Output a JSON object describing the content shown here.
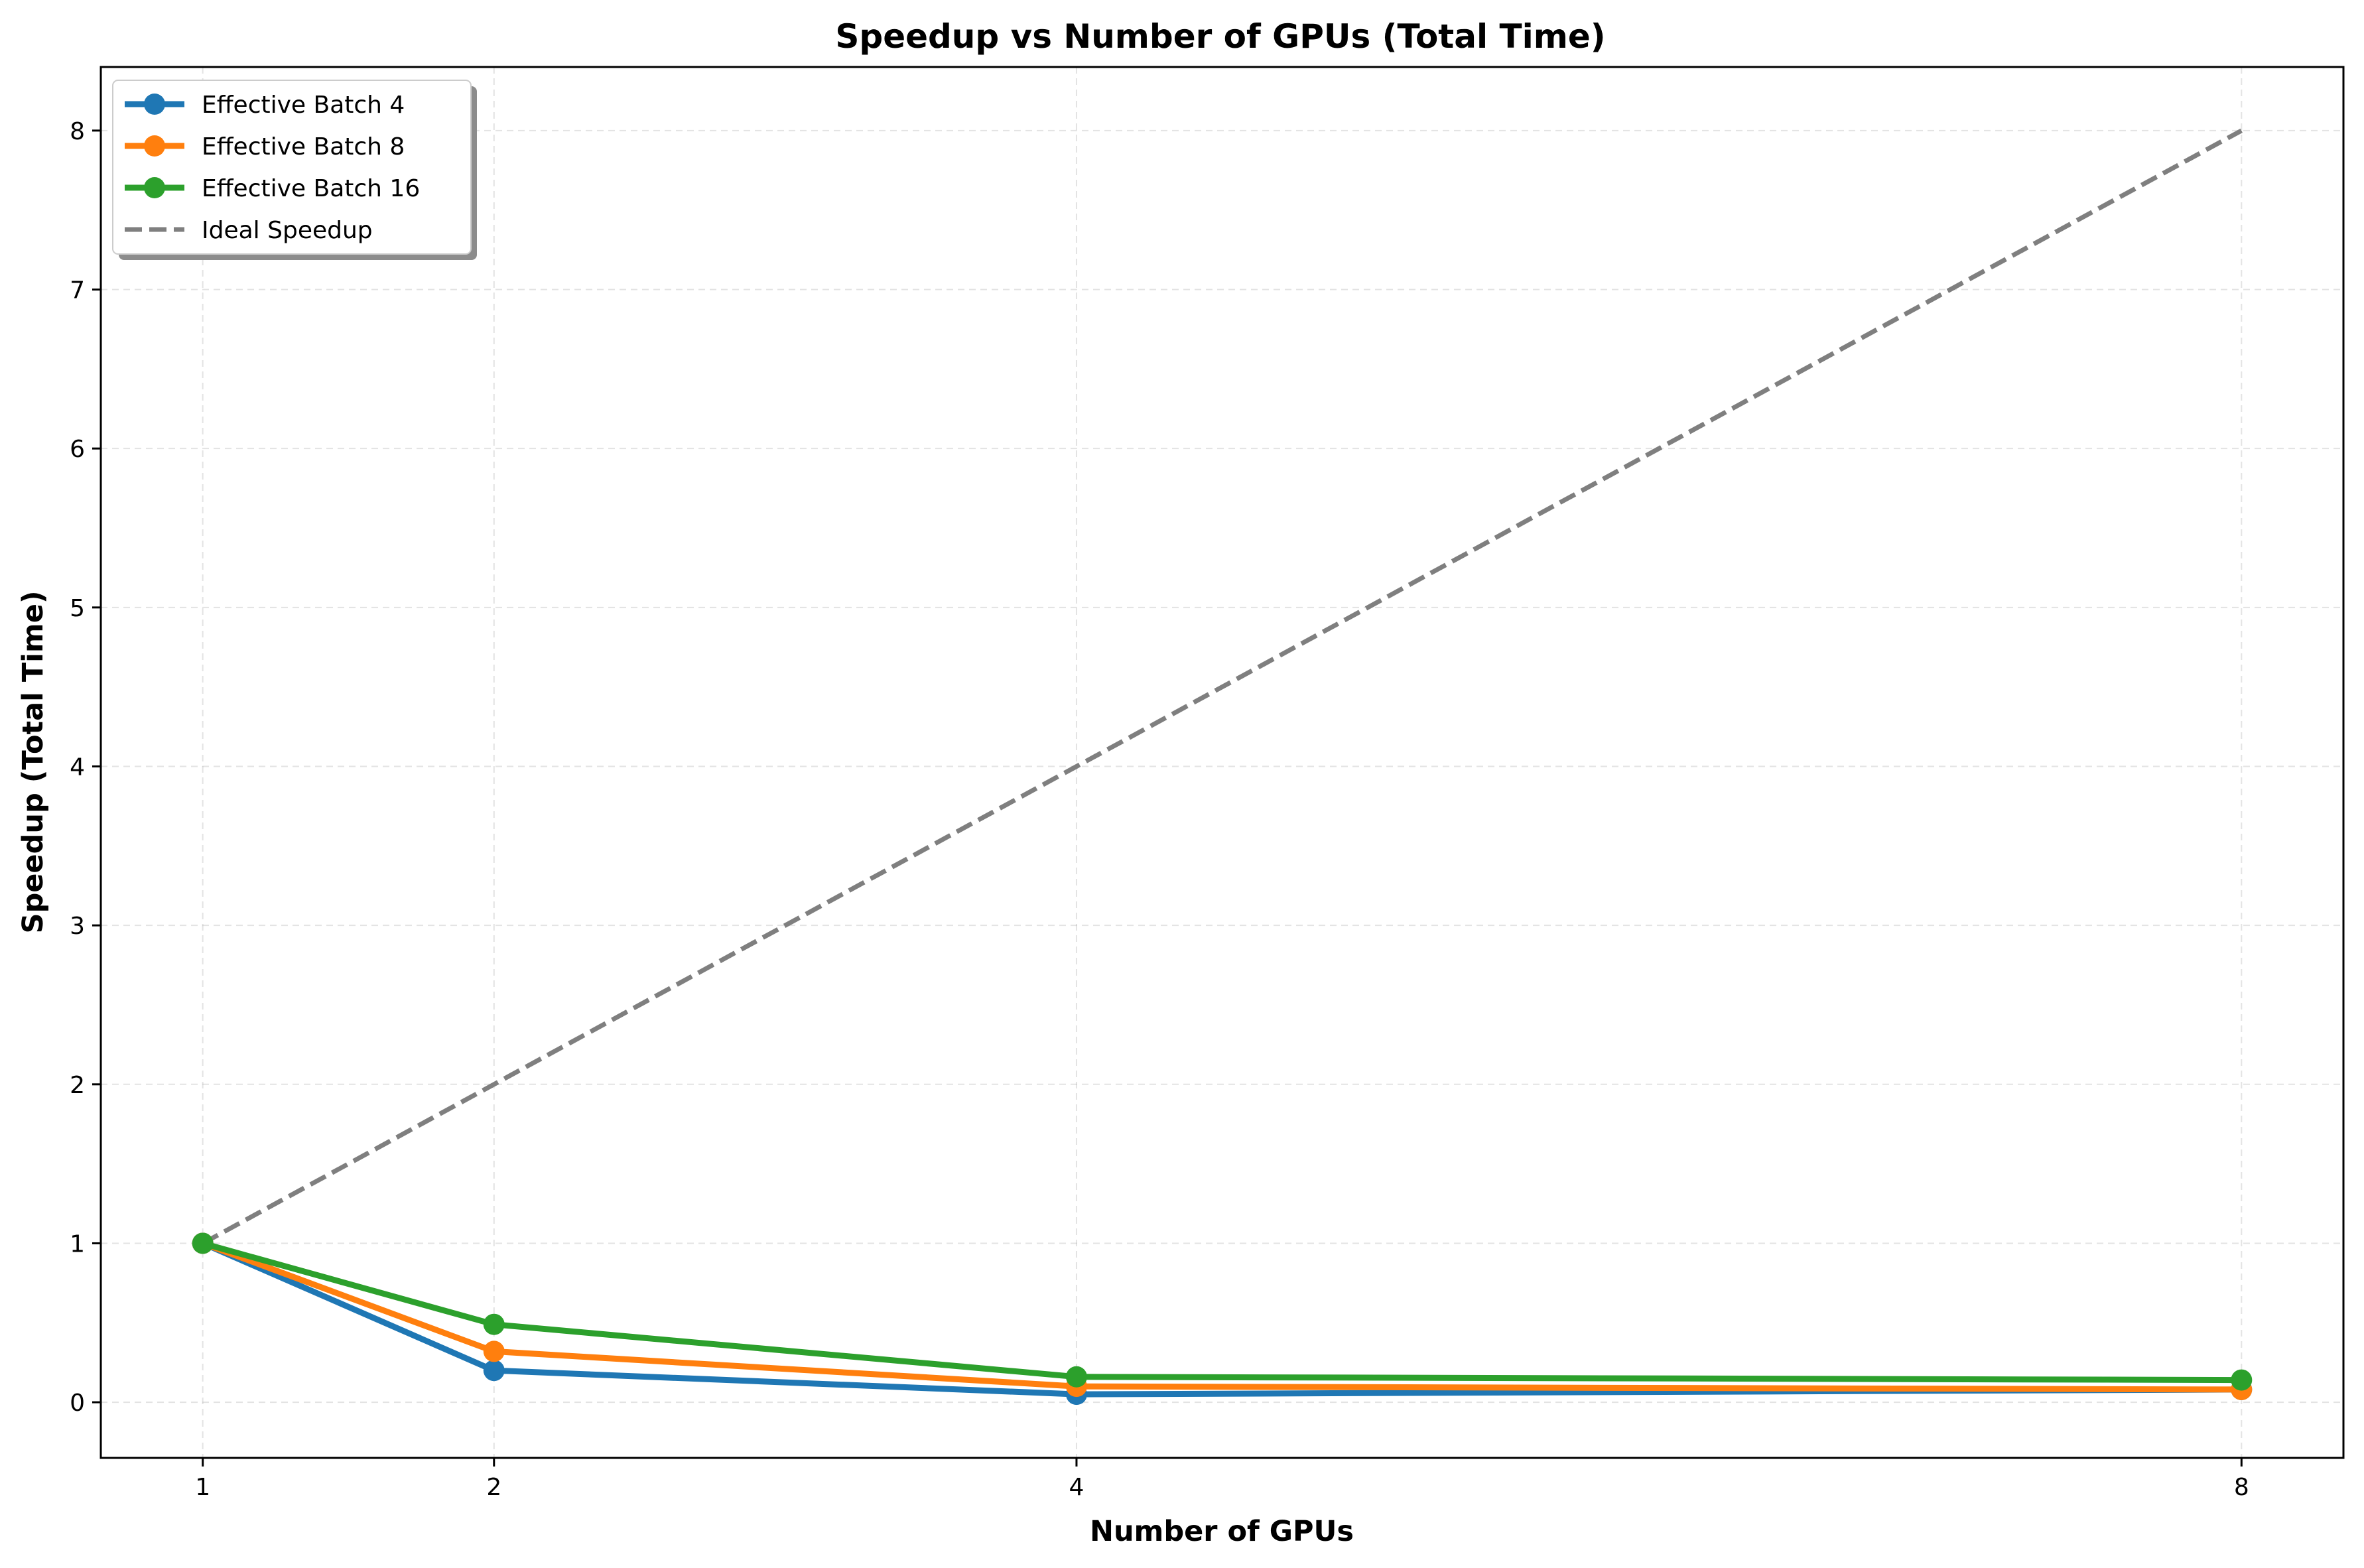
{
  "chart_data": {
    "type": "line",
    "title": "Speedup vs Number of GPUs (Total Time)",
    "xlabel": "Number of GPUs",
    "ylabel": "Speedup (Total Time)",
    "x": [
      1,
      2,
      4,
      8
    ],
    "xticks": [
      1,
      2,
      4,
      8
    ],
    "xlim": [
      0.65,
      8.35
    ],
    "yticks": [
      0,
      1,
      2,
      3,
      4,
      5,
      6,
      7,
      8
    ],
    "ylim": [
      -0.35,
      8.4
    ],
    "grid": true,
    "legend_position": "top-left",
    "series": [
      {
        "name": "Effective Batch 4",
        "color": "#1f77b4",
        "style": "solid",
        "marker": "circle",
        "values": [
          1.0,
          0.2,
          0.05,
          0.08
        ]
      },
      {
        "name": "Effective Batch 8",
        "color": "#ff7f0e",
        "style": "solid",
        "marker": "circle",
        "values": [
          1.0,
          0.32,
          0.1,
          0.08
        ]
      },
      {
        "name": "Effective Batch 16",
        "color": "#2ca02c",
        "style": "solid",
        "marker": "circle",
        "values": [
          1.0,
          0.49,
          0.16,
          0.14
        ]
      },
      {
        "name": "Ideal Speedup",
        "color": "#7f7f7f",
        "style": "dashed",
        "marker": "none",
        "values": [
          1,
          2,
          4,
          8
        ]
      }
    ]
  }
}
